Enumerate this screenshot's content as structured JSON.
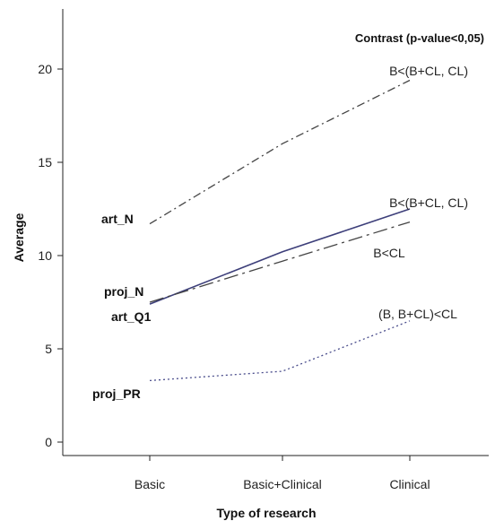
{
  "chart_data": {
    "type": "line",
    "title": "",
    "xlabel": "Type of research",
    "ylabel": "Average",
    "categories": [
      "Basic",
      "Basic+Clinical",
      "Clinical"
    ],
    "ylim": [
      0,
      23
    ],
    "yticks": [
      0,
      5,
      10,
      15,
      20
    ],
    "grid": false,
    "annotation_title": "Contrast (p-value<0,05)",
    "series": [
      {
        "name": "art_N",
        "values": [
          11.7,
          16.0,
          19.4
        ],
        "contrast": "B<(B+CL, CL)",
        "color": "#444444",
        "dash": "dash-dot"
      },
      {
        "name": "proj_N",
        "values": [
          7.4,
          10.2,
          12.5
        ],
        "contrast": "B<(B+CL, CL)",
        "color": "#3d3f7a",
        "dash": "solid"
      },
      {
        "name": "art_Q1",
        "values": [
          7.5,
          9.7,
          11.8
        ],
        "contrast": "B<CL",
        "color": "#444444",
        "dash": "long-dash-dot"
      },
      {
        "name": "proj_PR",
        "values": [
          3.3,
          3.8,
          6.5
        ],
        "contrast": "(B, B+CL)<CL",
        "color": "#4a4d8c",
        "dash": "dotted"
      }
    ]
  }
}
